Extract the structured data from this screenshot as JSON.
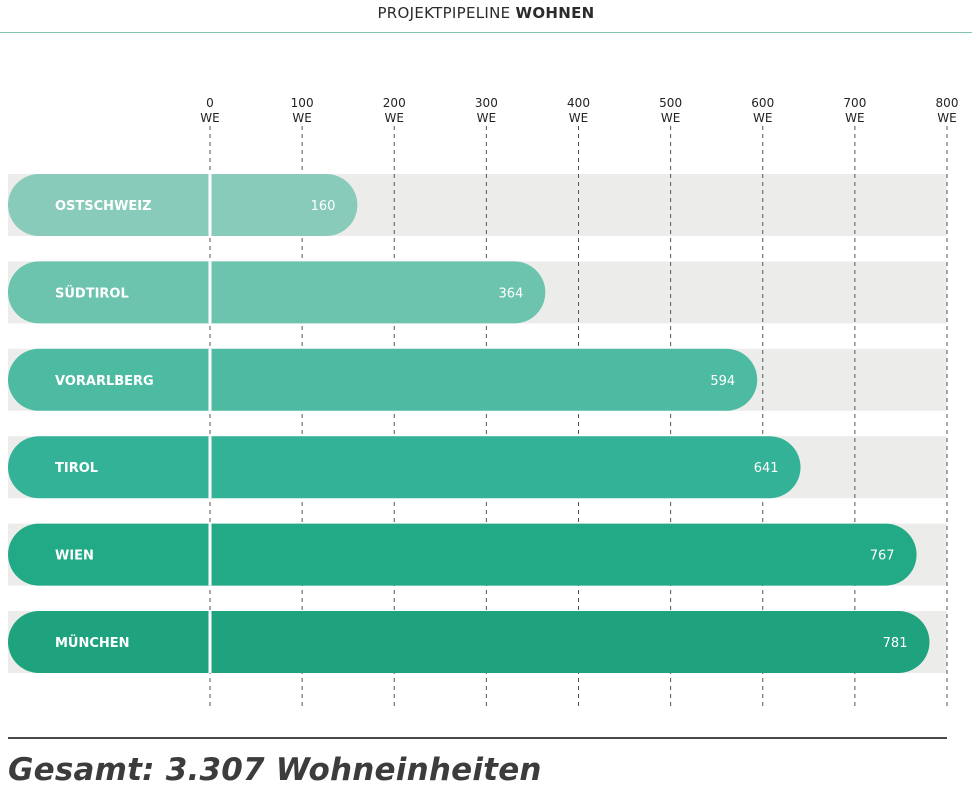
{
  "header": {
    "title_light": "PROJEKTPIPELINE ",
    "title_bold": "WOHNEN"
  },
  "footer": {
    "total_text": "Gesamt: 3.307 Wohneinheiten"
  },
  "colors": {
    "track": "#ececea",
    "gridline": "#555555",
    "bar_label": "#ffffff"
  },
  "chart_data": {
    "type": "bar",
    "orientation": "horizontal",
    "title": "PROJEKTPIPELINE WOHNEN",
    "unit": "WE",
    "xlim": [
      0,
      800
    ],
    "ticks": [
      0,
      100,
      200,
      300,
      400,
      500,
      600,
      700,
      800
    ],
    "tick_labels": [
      "0",
      "100",
      "200",
      "300",
      "400",
      "500",
      "600",
      "700",
      "800"
    ],
    "tick_unit_label": "WE",
    "grid": true,
    "categories": [
      "OSTSCHWEIZ",
      "SÜDTIROL",
      "VORARLBERG",
      "TIROL",
      "WIEN",
      "MÜNCHEN"
    ],
    "values": [
      160,
      364,
      594,
      641,
      767,
      781
    ],
    "value_labels": [
      "160",
      "364",
      "594",
      "641",
      "767",
      "781"
    ],
    "bar_colors": [
      "#88cbbb",
      "#6cc3ae",
      "#4cbba1",
      "#34b297",
      "#22a985",
      "#1fa37e"
    ]
  }
}
